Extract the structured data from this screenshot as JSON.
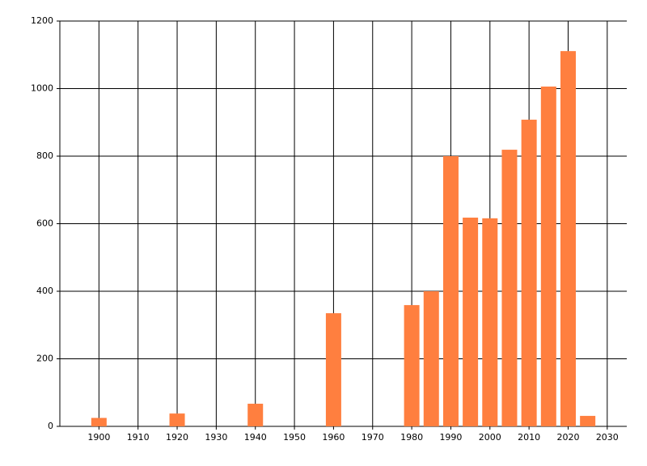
{
  "chart_data": {
    "type": "bar",
    "x": [
      1900,
      1920,
      1940,
      1960,
      1980,
      1985,
      1990,
      1995,
      2000,
      2005,
      2010,
      2015,
      2020,
      2025
    ],
    "values": [
      25,
      38,
      67,
      335,
      359,
      400,
      800,
      618,
      616,
      819,
      908,
      1006,
      1111,
      31
    ],
    "color": "#ff7f3f",
    "xlim": [
      1890,
      2035
    ],
    "xticks": [
      1900,
      1910,
      1920,
      1930,
      1940,
      1950,
      1960,
      1970,
      1980,
      1990,
      2000,
      2010,
      2020,
      2030
    ],
    "ylim": [
      0,
      1200
    ],
    "yticks": [
      0,
      200,
      400,
      600,
      800,
      1000,
      1200
    ],
    "grid": true
  }
}
